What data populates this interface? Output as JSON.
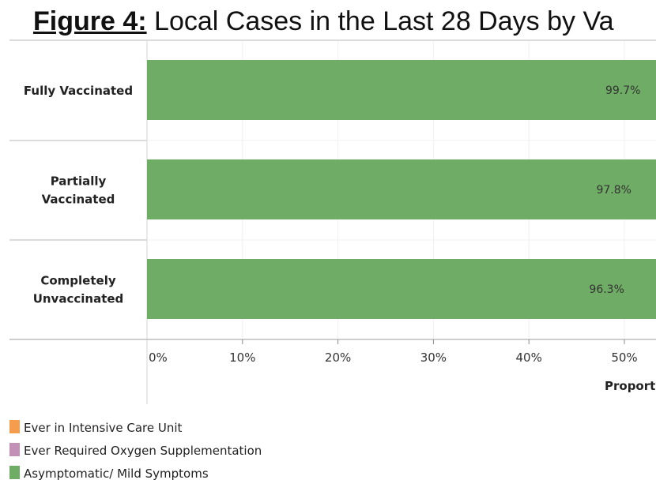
{
  "title": {
    "prefix": "Figure 4:",
    "text": "Local Cases in the Last 28 Days by Va"
  },
  "chart_data": {
    "type": "bar",
    "orientation": "horizontal",
    "stacked": true,
    "categories": [
      "Fully Vaccinated",
      "Partially Vaccinated",
      "Completely Unvaccinated"
    ],
    "category_lines": [
      [
        "Fully Vaccinated"
      ],
      [
        "Partially",
        "Vaccinated"
      ],
      [
        "Completely",
        "Unvaccinated"
      ]
    ],
    "series": [
      {
        "name": "Asymptomatic/ Mild Symptoms",
        "color": "#6fac65",
        "values": [
          99.7,
          97.8,
          96.3
        ],
        "labels": [
          "99.7%",
          "97.8%",
          "96.3%"
        ]
      }
    ],
    "legend": [
      {
        "name": "Ever in Intensive Care Unit",
        "color": "#f59d4c"
      },
      {
        "name": "Ever Required Oxygen Supplementation",
        "color": "#c391b5"
      },
      {
        "name": "Asymptomatic/ Mild Symptoms",
        "color": "#6fac65"
      }
    ],
    "xticks": [
      0,
      10,
      20,
      30,
      40,
      50
    ],
    "xtick_labels": [
      "0%",
      "10%",
      "20%",
      "30%",
      "40%",
      "50%"
    ],
    "xlabel": "Proporti",
    "xlim": [
      0,
      100
    ],
    "grid": true,
    "legend_placement": "bottom-left"
  }
}
